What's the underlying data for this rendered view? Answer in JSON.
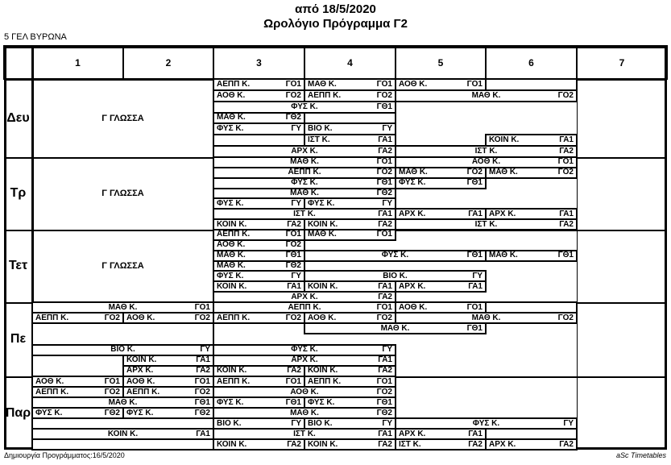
{
  "title": {
    "line1": "από 18/5/2020",
    "line2": "Ωρολόγιο Πρόγραμμα Γ2"
  },
  "school": "5 ΓΕΛ ΒΥΡΩΝΑ",
  "footer": {
    "left": "Δημιουργία Προγράμματος:16/5/2020",
    "right": "aSc Timetables"
  },
  "colors": {
    "line": "#000000",
    "background": "#ffffff",
    "text": "#000000"
  },
  "columns": [
    "1",
    "2",
    "3",
    "4",
    "5",
    "6",
    "7"
  ],
  "days": [
    {
      "label": "Δευ",
      "cells": [
        {
          "r": 1,
          "rs": 7,
          "c1": 1,
          "c2": 2,
          "name": "Γ ΓΛΩΣΣΑ",
          "code": "",
          "big": true
        },
        {
          "r": 1,
          "c1": 3,
          "c2": 3,
          "name": "ΑΕΠΠ Κ.",
          "code": "ΓΟ1"
        },
        {
          "r": 1,
          "c1": 4,
          "c2": 4,
          "name": "ΜΑΘ Κ.",
          "code": "ΓΟ1"
        },
        {
          "r": 1,
          "c1": 5,
          "c2": 5,
          "name": "ΑΟΘ Κ.",
          "code": "ΓΟ1"
        },
        {
          "r": 1,
          "c1": 6,
          "c2": 6,
          "name": "",
          "code": ""
        },
        {
          "r": 2,
          "c1": 3,
          "c2": 3,
          "name": "ΑΟΘ Κ.",
          "code": "ΓΟ2"
        },
        {
          "r": 2,
          "c1": 4,
          "c2": 4,
          "name": "ΑΕΠΠ Κ.",
          "code": "ΓΟ2"
        },
        {
          "r": 2,
          "c1": 5,
          "c2": 6,
          "name": "ΜΑΘ Κ.",
          "code": "ΓΟ2"
        },
        {
          "r": 3,
          "c1": 3,
          "c2": 4,
          "name": "ΦΥΣ Κ.",
          "code": "ΓΘ1"
        },
        {
          "r": 4,
          "c1": 3,
          "c2": 3,
          "name": "ΜΑΘ Κ.",
          "code": "ΓΘ2"
        },
        {
          "r": 4,
          "c1": 4,
          "c2": 4,
          "name": "",
          "code": ""
        },
        {
          "r": 5,
          "c1": 3,
          "c2": 3,
          "name": "ΦΥΣ Κ.",
          "code": "ΓΥ"
        },
        {
          "r": 5,
          "c1": 4,
          "c2": 4,
          "name": "ΒΙΟ Κ.",
          "code": "ΓΥ"
        },
        {
          "r": 6,
          "c1": 3,
          "c2": 3,
          "name": "",
          "code": ""
        },
        {
          "r": 6,
          "c1": 4,
          "c2": 4,
          "name": "ΙΣΤ Κ.",
          "code": "ΓΑ1"
        },
        {
          "r": 6,
          "c1": 6,
          "c2": 6,
          "name": "ΚΟΙΝ Κ.",
          "code": "ΓΑ1"
        },
        {
          "r": 7,
          "c1": 3,
          "c2": 4,
          "name": "ΑΡΧ Κ.",
          "code": "ΓΑ2"
        },
        {
          "r": 7,
          "c1": 5,
          "c2": 6,
          "name": "ΙΣΤ Κ.",
          "code": "ΓΑ2"
        }
      ]
    },
    {
      "label": "Τρ",
      "cells": [
        {
          "r": 1,
          "rs": 7,
          "c1": 1,
          "c2": 2,
          "name": "Γ ΓΛΩΣΣΑ",
          "code": "",
          "big": true
        },
        {
          "r": 1,
          "c1": 3,
          "c2": 4,
          "name": "ΜΑΘ Κ.",
          "code": "ΓΟ1"
        },
        {
          "r": 1,
          "c1": 5,
          "c2": 6,
          "name": "ΑΟΘ Κ.",
          "code": "ΓΟ1"
        },
        {
          "r": 2,
          "c1": 3,
          "c2": 4,
          "name": "ΑΕΠΠ Κ.",
          "code": "ΓΟ2"
        },
        {
          "r": 2,
          "c1": 5,
          "c2": 5,
          "name": "ΜΑΘ Κ.",
          "code": "ΓΟ2"
        },
        {
          "r": 2,
          "c1": 6,
          "c2": 6,
          "name": "ΜΑΘ Κ.",
          "code": "ΓΟ2"
        },
        {
          "r": 3,
          "c1": 3,
          "c2": 4,
          "name": "ΦΥΣ Κ.",
          "code": "ΓΘ1"
        },
        {
          "r": 3,
          "c1": 5,
          "c2": 5,
          "name": "ΦΥΣ Κ.",
          "code": "ΓΘ1"
        },
        {
          "r": 4,
          "c1": 3,
          "c2": 4,
          "name": "ΜΑΘ Κ.",
          "code": "ΓΘ2"
        },
        {
          "r": 5,
          "c1": 3,
          "c2": 3,
          "name": "ΦΥΣ Κ.",
          "code": "ΓΥ"
        },
        {
          "r": 5,
          "c1": 4,
          "c2": 4,
          "name": "ΦΥΣ Κ.",
          "code": "ΓΥ"
        },
        {
          "r": 6,
          "c1": 3,
          "c2": 4,
          "name": "ΙΣΤ Κ.",
          "code": "ΓΑ1"
        },
        {
          "r": 6,
          "c1": 5,
          "c2": 5,
          "name": "ΑΡΧ Κ.",
          "code": "ΓΑ1"
        },
        {
          "r": 6,
          "c1": 6,
          "c2": 6,
          "name": "ΑΡΧ Κ.",
          "code": "ΓΑ1"
        },
        {
          "r": 7,
          "c1": 3,
          "c2": 3,
          "name": "ΚΟΙΝ Κ.",
          "code": "ΓΑ2"
        },
        {
          "r": 7,
          "c1": 4,
          "c2": 4,
          "name": "ΚΟΙΝ Κ.",
          "code": "ΓΑ2"
        },
        {
          "r": 7,
          "c1": 5,
          "c2": 6,
          "name": "ΙΣΤ Κ.",
          "code": "ΓΑ2"
        }
      ]
    },
    {
      "label": "Τετ",
      "cells": [
        {
          "r": 1,
          "rs": 7,
          "c1": 1,
          "c2": 2,
          "name": "Γ ΓΛΩΣΣΑ",
          "code": "",
          "big": true
        },
        {
          "r": 1,
          "c1": 3,
          "c2": 3,
          "name": "ΑΕΠΠ Κ.",
          "code": "ΓΟ1"
        },
        {
          "r": 1,
          "c1": 4,
          "c2": 4,
          "name": "ΜΑΘ Κ.",
          "code": "ΓΟ1"
        },
        {
          "r": 2,
          "c1": 3,
          "c2": 3,
          "name": "ΑΟΘ Κ.",
          "code": "ΓΟ2"
        },
        {
          "r": 3,
          "c1": 3,
          "c2": 3,
          "name": "ΜΑΘ Κ.",
          "code": "ΓΘ1"
        },
        {
          "r": 3,
          "c1": 4,
          "c2": 5,
          "name": "ΦΥΣ Κ.",
          "code": "ΓΘ1"
        },
        {
          "r": 3,
          "c1": 6,
          "c2": 6,
          "name": "ΜΑΘ Κ.",
          "code": "ΓΘ1"
        },
        {
          "r": 4,
          "c1": 3,
          "c2": 3,
          "name": "ΜΑΘ Κ.",
          "code": "ΓΘ2"
        },
        {
          "r": 5,
          "c1": 3,
          "c2": 3,
          "name": "ΦΥΣ Κ.",
          "code": "ΓΥ"
        },
        {
          "r": 5,
          "c1": 4,
          "c2": 5,
          "name": "ΒΙΟ Κ.",
          "code": "ΓΥ"
        },
        {
          "r": 6,
          "c1": 3,
          "c2": 3,
          "name": "ΚΟΙΝ Κ.",
          "code": "ΓΑ1"
        },
        {
          "r": 6,
          "c1": 4,
          "c2": 4,
          "name": "ΚΟΙΝ Κ.",
          "code": "ΓΑ1"
        },
        {
          "r": 6,
          "c1": 5,
          "c2": 5,
          "name": "ΑΡΧ Κ.",
          "code": "ΓΑ1"
        },
        {
          "r": 7,
          "c1": 3,
          "c2": 4,
          "name": "ΑΡΧ Κ.",
          "code": "ΓΑ2"
        }
      ]
    },
    {
      "label": "Πε",
      "cells": [
        {
          "r": 1,
          "c1": 1,
          "c2": 2,
          "name": "ΜΑΘ Κ.",
          "code": "ΓΟ1"
        },
        {
          "r": 1,
          "c1": 3,
          "c2": 4,
          "name": "ΑΕΠΠ Κ.",
          "code": "ΓΟ1"
        },
        {
          "r": 1,
          "c1": 5,
          "c2": 5,
          "name": "ΑΟΘ Κ.",
          "code": "ΓΟ1"
        },
        {
          "r": 1,
          "c1": 6,
          "c2": 6,
          "name": "",
          "code": ""
        },
        {
          "r": 2,
          "c1": 1,
          "c2": 1,
          "name": "ΑΕΠΠ Κ.",
          "code": "ΓΟ2"
        },
        {
          "r": 2,
          "c1": 2,
          "c2": 2,
          "name": "ΑΟΘ Κ.",
          "code": "ΓΟ2"
        },
        {
          "r": 2,
          "c1": 3,
          "c2": 3,
          "name": "ΑΕΠΠ Κ.",
          "code": "ΓΟ2"
        },
        {
          "r": 2,
          "c1": 4,
          "c2": 4,
          "name": "ΑΟΘ Κ.",
          "code": "ΓΟ2"
        },
        {
          "r": 2,
          "c1": 5,
          "c2": 6,
          "name": "ΜΑΘ Κ.",
          "code": "ΓΟ2"
        },
        {
          "r": 3,
          "rs": 2,
          "c1": 1,
          "c2": 2,
          "name": "",
          "code": ""
        },
        {
          "r": 3,
          "c1": 4,
          "c2": 5,
          "name": "ΜΑΘ Κ.",
          "code": "ΓΘ1"
        },
        {
          "r": 5,
          "c1": 1,
          "c2": 2,
          "name": "ΒΙΟ Κ.",
          "code": "ΓΥ"
        },
        {
          "r": 5,
          "c1": 3,
          "c2": 4,
          "name": "ΦΥΣ Κ.",
          "code": "ΓΥ"
        },
        {
          "r": 6,
          "rs": 2,
          "c1": 1,
          "c2": 1,
          "name": "",
          "code": ""
        },
        {
          "r": 6,
          "c1": 2,
          "c2": 2,
          "name": "ΚΟΙΝ Κ.",
          "code": "ΓΑ1"
        },
        {
          "r": 6,
          "c1": 3,
          "c2": 4,
          "name": "ΑΡΧ Κ.",
          "code": "ΓΑ1"
        },
        {
          "r": 7,
          "c1": 2,
          "c2": 2,
          "name": "ΑΡΧ Κ.",
          "code": "ΓΑ2"
        },
        {
          "r": 7,
          "c1": 3,
          "c2": 3,
          "name": "ΚΟΙΝ Κ.",
          "code": "ΓΑ2"
        },
        {
          "r": 7,
          "c1": 4,
          "c2": 4,
          "name": "ΚΟΙΝ Κ.",
          "code": "ΓΑ2"
        }
      ]
    },
    {
      "label": "Παρ",
      "cells": [
        {
          "r": 1,
          "c1": 1,
          "c2": 1,
          "name": "ΑΟΘ Κ.",
          "code": "ΓΟ1"
        },
        {
          "r": 1,
          "c1": 2,
          "c2": 2,
          "name": "ΑΟΘ Κ.",
          "code": "ΓΟ1"
        },
        {
          "r": 1,
          "c1": 3,
          "c2": 3,
          "name": "ΑΕΠΠ Κ.",
          "code": "ΓΟ1"
        },
        {
          "r": 1,
          "c1": 4,
          "c2": 4,
          "name": "ΑΕΠΠ Κ.",
          "code": "ΓΟ1"
        },
        {
          "r": 2,
          "c1": 1,
          "c2": 1,
          "name": "ΑΕΠΠ Κ.",
          "code": "ΓΟ2"
        },
        {
          "r": 2,
          "c1": 2,
          "c2": 2,
          "name": "ΑΕΠΠ Κ.",
          "code": "ΓΟ2"
        },
        {
          "r": 2,
          "c1": 3,
          "c2": 4,
          "name": "ΑΟΘ Κ.",
          "code": "ΓΟ2"
        },
        {
          "r": 3,
          "c1": 1,
          "c2": 2,
          "name": "ΜΑΘ Κ.",
          "code": "ΓΘ1"
        },
        {
          "r": 3,
          "c1": 3,
          "c2": 3,
          "name": "ΦΥΣ Κ.",
          "code": "ΓΘ1"
        },
        {
          "r": 3,
          "c1": 4,
          "c2": 4,
          "name": "ΦΥΣ Κ.",
          "code": "ΓΘ1"
        },
        {
          "r": 4,
          "c1": 1,
          "c2": 1,
          "name": "ΦΥΣ Κ.",
          "code": "ΓΘ2"
        },
        {
          "r": 4,
          "c1": 2,
          "c2": 2,
          "name": "ΦΥΣ Κ.",
          "code": "ΓΘ2"
        },
        {
          "r": 4,
          "c1": 3,
          "c2": 4,
          "name": "ΜΑΘ Κ.",
          "code": "ΓΘ2"
        },
        {
          "r": 5,
          "c1": 1,
          "c2": 2,
          "name": "",
          "code": ""
        },
        {
          "r": 5,
          "c1": 3,
          "c2": 3,
          "name": "ΒΙΟ Κ.",
          "code": "ΓΥ"
        },
        {
          "r": 5,
          "c1": 4,
          "c2": 4,
          "name": "ΒΙΟ Κ.",
          "code": "ΓΥ"
        },
        {
          "r": 5,
          "c1": 5,
          "c2": 6,
          "name": "ΦΥΣ Κ.",
          "code": "ΓΥ"
        },
        {
          "r": 6,
          "c1": 1,
          "c2": 2,
          "name": "ΚΟΙΝ Κ.",
          "code": "ΓΑ1"
        },
        {
          "r": 6,
          "c1": 3,
          "c2": 4,
          "name": "ΙΣΤ Κ.",
          "code": "ΓΑ1"
        },
        {
          "r": 6,
          "c1": 5,
          "c2": 5,
          "name": "ΑΡΧ Κ.",
          "code": "ΓΑ1"
        },
        {
          "r": 6,
          "c1": 6,
          "c2": 6,
          "name": "",
          "code": ""
        },
        {
          "r": 7,
          "c1": 1,
          "c2": 2,
          "name": "",
          "code": ""
        },
        {
          "r": 7,
          "c1": 3,
          "c2": 3,
          "name": "ΚΟΙΝ Κ.",
          "code": "ΓΑ2"
        },
        {
          "r": 7,
          "c1": 4,
          "c2": 4,
          "name": "ΚΟΙΝ Κ.",
          "code": "ΓΑ2"
        },
        {
          "r": 7,
          "c1": 5,
          "c2": 5,
          "name": "ΙΣΤ Κ.",
          "code": "ΓΑ2"
        },
        {
          "r": 7,
          "c1": 6,
          "c2": 6,
          "name": "ΑΡΧ Κ.",
          "code": "ΓΑ2"
        }
      ]
    }
  ]
}
